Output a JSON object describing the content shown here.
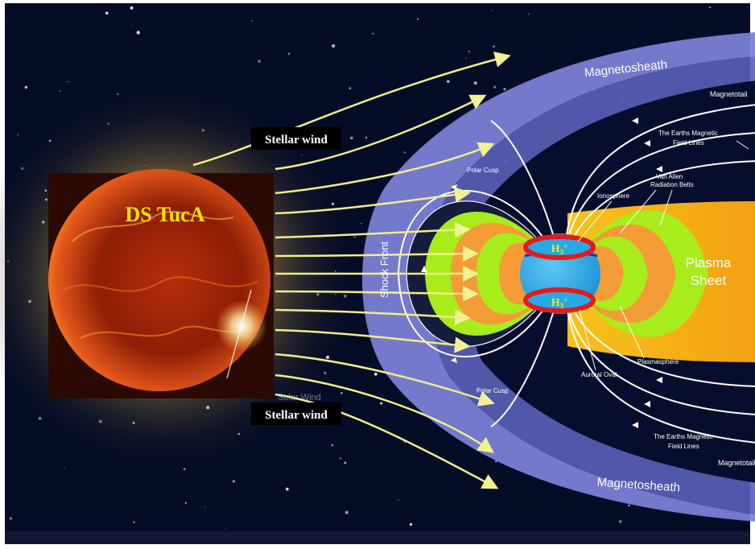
{
  "star": {
    "name": "DS TucA"
  },
  "wind": {
    "top": "Stellar wind",
    "bottom": "Stellar wind",
    "faint": "Solar Wind"
  },
  "magnetosphere": {
    "sheath_top": "Magnetosheath",
    "sheath_bottom": "Magnetosheath",
    "magnetotail_top": "Magnetotail",
    "magnetotail_bottom": "Magnetotail",
    "field_lines_top_1": "The Earths Magnetic",
    "field_lines_top_2": "Field Lines",
    "field_lines_bottom_1": "The Earths Magnetic",
    "field_lines_bottom_2": "Field Lines",
    "polar_cusp_top": "Polar Cusp",
    "polar_cusp_bottom": "Polar Cusp",
    "ionosphere": "Ionosphere",
    "van_allen_1": "Van Allen",
    "van_allen_2": "Radiation Belts",
    "plasma_sheet_1": "Plasma",
    "plasma_sheet_2": "Sheet",
    "shock_front": "Shock Front",
    "auroral_oval": "Auroral Oval",
    "plasmasphere": "Plasmasphere",
    "h3_top": "H3+",
    "h3_bottom": "H3+"
  },
  "colors": {
    "background": "#050c26",
    "star_core": "#c83a10",
    "star_label": "#ffe400",
    "wind_arrows": "#f0ee8a",
    "sheath": "#7c83d6",
    "belt_green": "#a8ec1c",
    "belt_orange": "#f39c35",
    "planet": "#29a8e8",
    "aurora_ring": "#e21a1a",
    "plasma_sheet": "#f6b812"
  }
}
